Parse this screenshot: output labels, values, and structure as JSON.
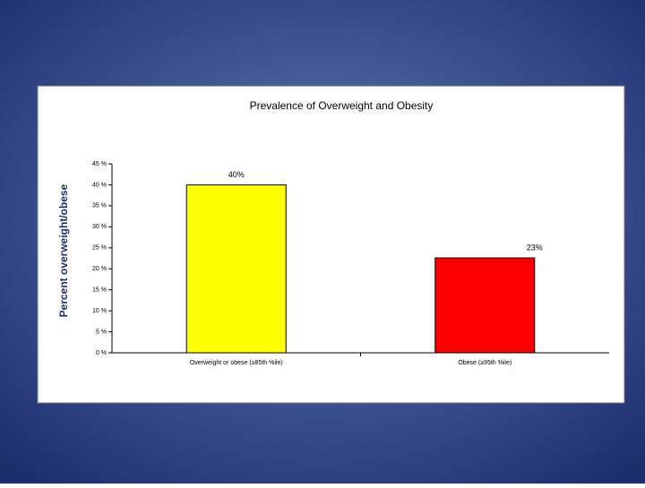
{
  "chart_data": {
    "type": "bar",
    "title": "Prevalence of Overweight and Obesity",
    "y_label": "Percent overweight/obese",
    "categories": [
      "Overweight or obese (≥85th %ile)",
      "Obese (≥95th %ile)"
    ],
    "values": [
      40,
      22.6
    ],
    "value_labels": [
      "40%",
      "23%"
    ],
    "colors": [
      "#ffff00",
      "#ff0000"
    ],
    "ylim": [
      0,
      45
    ],
    "yticks": [
      {
        "value": 0,
        "label": "0 %"
      },
      {
        "value": 5,
        "label": "5 %"
      },
      {
        "value": 10,
        "label": "10 %"
      },
      {
        "value": 15,
        "label": "15 %"
      },
      {
        "value": 20,
        "label": "20 %"
      },
      {
        "value": 25,
        "label": "25 %"
      },
      {
        "value": 30,
        "label": "30 %"
      },
      {
        "value": 35,
        "label": "35 %"
      },
      {
        "value": 40,
        "label": "40 %"
      },
      {
        "value": 45,
        "label": "45 %"
      }
    ],
    "grid": false
  }
}
